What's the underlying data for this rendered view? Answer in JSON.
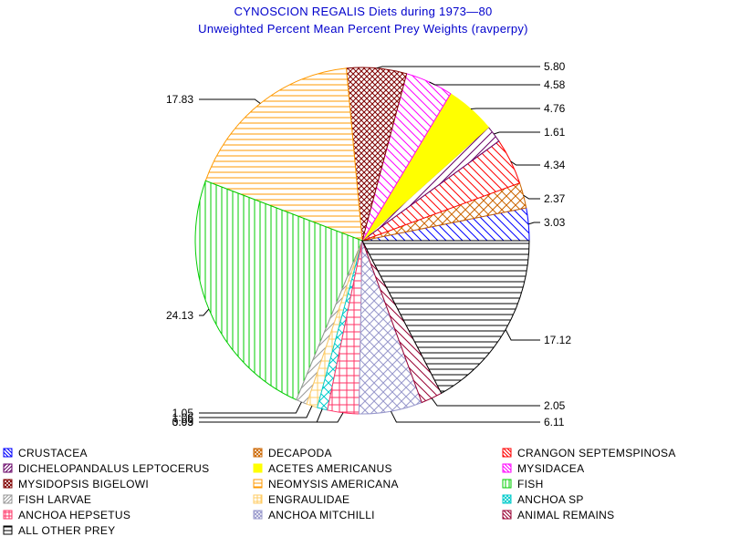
{
  "chart_data": {
    "type": "pie",
    "title": "CYNOSCION REGALIS Diets during 1973—80",
    "subtitle": "Unweighted Percent Mean Percent Prey  Weights (ravperpy)",
    "legend_position": "bottom",
    "slices": [
      {
        "name": "CRUSTACEA",
        "value": 3.03,
        "label": "3.03",
        "color": "#0000ff",
        "pattern": "diag-down",
        "legend_icon": "square-outline"
      },
      {
        "name": "DECAPODA",
        "value": 2.37,
        "label": "2.37",
        "color": "#cc6600",
        "pattern": "crosshatch-diag",
        "legend_icon": "square-outline"
      },
      {
        "name": "CRANGON SEPTEMSPINOSA",
        "value": 4.34,
        "label": "4.34",
        "color": "#ff0000",
        "pattern": "diag-down",
        "legend_icon": "square-outline"
      },
      {
        "name": "DICHELOPANDALUS LEPTOCERUS",
        "value": 1.61,
        "label": "1.61",
        "color": "#660066",
        "pattern": "diag-up",
        "legend_icon": "square-outline"
      },
      {
        "name": "ACETES AMERICANUS",
        "value": 4.76,
        "label": "4.76",
        "color": "#ffff00",
        "pattern": "solid",
        "legend_icon": "square-filled"
      },
      {
        "name": "MYSIDACEA",
        "value": 4.58,
        "label": "4.58",
        "color": "#ff00ff",
        "pattern": "diag-down",
        "legend_icon": "square-hatched"
      },
      {
        "name": "MYSIDOPSIS BIGELOWI",
        "value": 5.8,
        "label": "5.80",
        "color": "#800000",
        "pattern": "crosshatch-dense",
        "legend_icon": "square-crosshatch"
      },
      {
        "name": "NEOMYSIS AMERICANA",
        "value": 17.83,
        "label": "17.83",
        "color": "#ff9900",
        "pattern": "horizontal",
        "legend_icon": "square-horizontal"
      },
      {
        "name": "FISH",
        "value": 24.13,
        "label": "24.13",
        "color": "#00cc00",
        "pattern": "vertical",
        "legend_icon": "square-vertical"
      },
      {
        "name": "FISH LARVAE",
        "value": 1.05,
        "label": "1.05",
        "color": "#999999",
        "pattern": "diag-up",
        "legend_icon": "square-hatched"
      },
      {
        "name": "ENGRAULIDAE",
        "value": 1.06,
        "label": "1.06",
        "color": "#ffcc66",
        "pattern": "grid",
        "legend_icon": "square-grid"
      },
      {
        "name": "ANCHOA SP",
        "value": 0.99,
        "label": "0.99",
        "color": "#00cccc",
        "pattern": "crosshatch-diag",
        "legend_icon": "square-crosshatch"
      },
      {
        "name": "ANCHOA HEPSETUS",
        "value": 3.03,
        "label": "3.03",
        "color": "#ff3366",
        "pattern": "grid",
        "legend_icon": "square-grid"
      },
      {
        "name": "ANCHOA MITCHILLI",
        "value": 6.11,
        "label": "6.11",
        "color": "#9999cc",
        "pattern": "crosshatch-diag",
        "legend_icon": "square-crosshatch"
      },
      {
        "name": "ANIMAL REMAINS",
        "value": 2.05,
        "label": "2.05",
        "color": "#990033",
        "pattern": "diag-down",
        "legend_icon": "square-hatched"
      },
      {
        "name": "ALL OTHER PREY",
        "value": 17.12,
        "label": "17.12",
        "color": "#000000",
        "pattern": "horizontal",
        "legend_icon": "square-horizontal"
      }
    ]
  }
}
